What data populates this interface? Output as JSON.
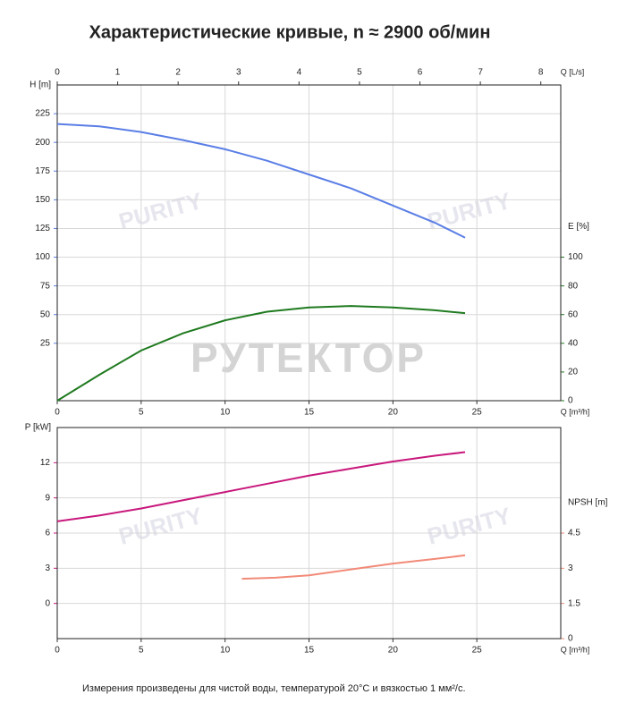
{
  "title": "Характеристические кривые, n ≈ 2900 об/мин",
  "footnote": "Измерения произведены для чистой воды, температурой 20°C и вязкостью 1 мм²/с.",
  "watermark": {
    "brand": "РУТЕКТОР",
    "logo": "PURITY"
  },
  "chart_data": [
    {
      "type": "line",
      "xlabel": "Q [m³/h]",
      "xlim": [
        0,
        30
      ],
      "xticks": [
        0,
        5,
        10,
        15,
        20,
        25
      ],
      "x2label": "Q [L/s]",
      "x2lim": [
        0,
        8.33
      ],
      "x2ticks": [
        0,
        1,
        2,
        3,
        4,
        5,
        6,
        7,
        8
      ],
      "ylabel": "H [m]",
      "ylim": [
        -25,
        250
      ],
      "yticks": [
        25,
        50,
        75,
        100,
        125,
        150,
        175,
        200,
        225
      ],
      "y2label": "E [%]",
      "y2lim": [
        0,
        220
      ],
      "y2ticks": [
        0,
        20,
        40,
        60,
        80,
        100
      ],
      "grid": true,
      "series": [
        {
          "name": "H",
          "color": "#5a7ee6",
          "x": [
            0,
            2.5,
            5,
            7.5,
            10,
            12.5,
            15,
            17.5,
            20,
            22.5,
            24.3
          ],
          "values": [
            216,
            214,
            209,
            202,
            194,
            184,
            172,
            160,
            145,
            130,
            117
          ]
        },
        {
          "name": "E",
          "color": "#1f7a1f",
          "axis": "y2",
          "x": [
            0,
            2.5,
            5,
            7.5,
            10,
            12.5,
            15,
            17.5,
            20,
            22.5,
            24.3
          ],
          "values": [
            0,
            18,
            35,
            47,
            56,
            62,
            65,
            66,
            65,
            63,
            61
          ]
        }
      ]
    },
    {
      "type": "line",
      "xlabel": "Q [m³/h]",
      "xlim": [
        0,
        30
      ],
      "xticks": [
        0,
        5,
        10,
        15,
        20,
        25
      ],
      "ylabel": "P [kW]",
      "ylim": [
        -3,
        15
      ],
      "yticks": [
        0,
        3,
        6,
        9,
        12
      ],
      "y2label": "NPSH [m]",
      "y2lim": [
        0,
        9
      ],
      "y2ticks": [
        0,
        1.5,
        3,
        4.5
      ],
      "grid": true,
      "series": [
        {
          "name": "P",
          "color": "#c8187c",
          "x": [
            0,
            2.5,
            5,
            7.5,
            10,
            12.5,
            15,
            17.5,
            20,
            22.5,
            24.3
          ],
          "values": [
            7.0,
            7.5,
            8.1,
            8.8,
            9.5,
            10.2,
            10.9,
            11.5,
            12.1,
            12.6,
            12.9
          ]
        },
        {
          "name": "NPSH",
          "color": "#f28a78",
          "axis": "y2",
          "x": [
            11,
            13,
            15,
            17.5,
            20,
            22.5,
            24.3
          ],
          "values": [
            2.55,
            2.6,
            2.7,
            2.95,
            3.2,
            3.4,
            3.55
          ]
        }
      ]
    }
  ]
}
